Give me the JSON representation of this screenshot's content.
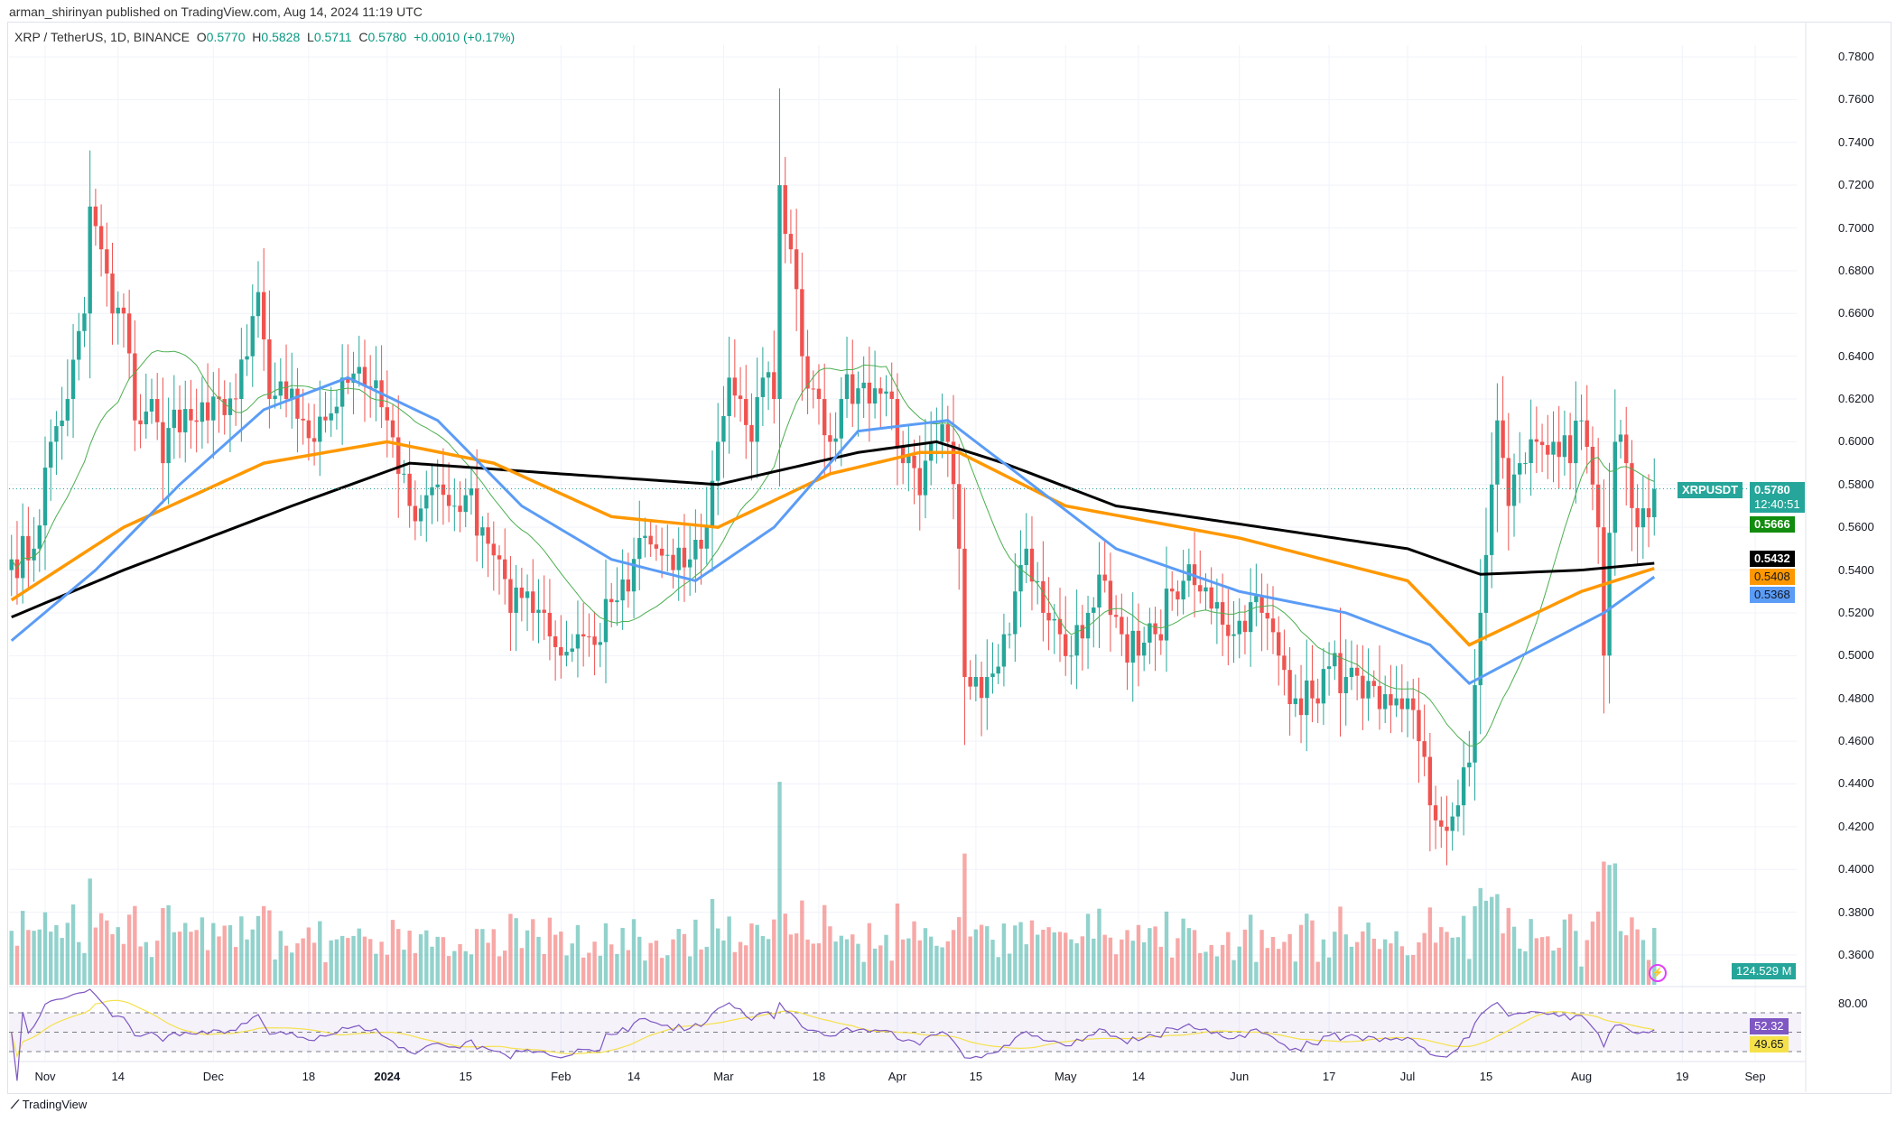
{
  "header": {
    "published": "arman_shirinyan published on TradingView.com, Aug 14, 2024 11:19 UTC",
    "symbol": "XRP / TetherUS, 1D, BINANCE",
    "o_label": "O",
    "o": "0.5770",
    "h_label": "H",
    "h": "0.5828",
    "l_label": "L",
    "l": "0.5711",
    "c_label": "C",
    "c": "0.5780",
    "change": "+0.0010 (+0.17%)"
  },
  "colors": {
    "up": "#26a69a",
    "down": "#ef5350",
    "ma20": "#4caf50",
    "ma50": "#5b9cf6",
    "ma100": "#ff9800",
    "ma200": "#000000",
    "rsi": "#7e57c2",
    "rsi_ma": "#f5e14a"
  },
  "price_axis": [
    "0.7800",
    "0.7600",
    "0.7400",
    "0.7200",
    "0.7000",
    "0.6800",
    "0.6600",
    "0.6400",
    "0.6200",
    "0.6000",
    "0.5800",
    "0.5600",
    "0.5400",
    "0.5200",
    "0.5000",
    "0.4800",
    "0.4600",
    "0.4400",
    "0.4200",
    "0.4000",
    "0.3800",
    "0.3600"
  ],
  "tags": {
    "symbol": "XRPUSDT",
    "last": "0.5780",
    "countdown": "12:40:51",
    "ma20": "0.5666",
    "ma200": "0.5432",
    "ma100": "0.5408",
    "ma50": "0.5368",
    "volume": "124.529 M",
    "rsi_level": "80.00",
    "rsi": "52.32",
    "rsi_ma": "49.65"
  },
  "time_axis": [
    "Nov",
    "14",
    "Dec",
    "18",
    "2024",
    "15",
    "Feb",
    "14",
    "Mar",
    "18",
    "Apr",
    "15",
    "May",
    "14",
    "Jun",
    "17",
    "Jul",
    "15",
    "Aug",
    "19",
    "Sep"
  ],
  "logo": "TradingView",
  "chart_data": {
    "type": "candlestick",
    "title": "XRP / TetherUS, 1D, BINANCE",
    "ylim": [
      0.35,
      0.79
    ],
    "start_date": "2023-10-26",
    "end_date": "2024-08-14",
    "close_anchors": [
      [
        "2023-10-26",
        0.545
      ],
      [
        "2023-10-30",
        0.55
      ],
      [
        "2023-11-02",
        0.6
      ],
      [
        "2023-11-05",
        0.62
      ],
      [
        "2023-11-08",
        0.66
      ],
      [
        "2023-11-09",
        0.71
      ],
      [
        "2023-11-11",
        0.69
      ],
      [
        "2023-11-13",
        0.66
      ],
      [
        "2023-11-15",
        0.66
      ],
      [
        "2023-11-17",
        0.61
      ],
      [
        "2023-11-20",
        0.62
      ],
      [
        "2023-11-22",
        0.59
      ],
      [
        "2023-11-24",
        0.615
      ],
      [
        "2023-11-27",
        0.61
      ],
      [
        "2023-11-30",
        0.61
      ],
      [
        "2023-12-02",
        0.62
      ],
      [
        "2023-12-05",
        0.62
      ],
      [
        "2023-12-07",
        0.64
      ],
      [
        "2023-12-09",
        0.67
      ],
      [
        "2023-12-11",
        0.62
      ],
      [
        "2023-12-14",
        0.62
      ],
      [
        "2023-12-17",
        0.61
      ],
      [
        "2023-12-19",
        0.6
      ],
      [
        "2023-12-21",
        0.61
      ],
      [
        "2023-12-24",
        0.63
      ],
      [
        "2023-12-27",
        0.635
      ],
      [
        "2023-12-29",
        0.625
      ],
      [
        "2024-01-01",
        0.61
      ],
      [
        "2024-01-03",
        0.585
      ],
      [
        "2024-01-05",
        0.57
      ],
      [
        "2024-01-08",
        0.575
      ],
      [
        "2024-01-10",
        0.58
      ],
      [
        "2024-01-12",
        0.57
      ],
      [
        "2024-01-15",
        0.575
      ],
      [
        "2024-01-18",
        0.56
      ],
      [
        "2024-01-21",
        0.545
      ],
      [
        "2024-01-23",
        0.52
      ],
      [
        "2024-01-26",
        0.53
      ],
      [
        "2024-01-29",
        0.52
      ],
      [
        "2024-02-01",
        0.5
      ],
      [
        "2024-02-04",
        0.51
      ],
      [
        "2024-02-07",
        0.505
      ],
      [
        "2024-02-10",
        0.525
      ],
      [
        "2024-02-13",
        0.53
      ],
      [
        "2024-02-15",
        0.555
      ],
      [
        "2024-02-18",
        0.55
      ],
      [
        "2024-02-21",
        0.54
      ],
      [
        "2024-02-24",
        0.545
      ],
      [
        "2024-02-27",
        0.56
      ],
      [
        "2024-02-29",
        0.6
      ],
      [
        "2024-03-02",
        0.63
      ],
      [
        "2024-03-04",
        0.62
      ],
      [
        "2024-03-06",
        0.6
      ],
      [
        "2024-03-08",
        0.63
      ],
      [
        "2024-03-10",
        0.62
      ],
      [
        "2024-03-11",
        0.72
      ],
      [
        "2024-03-13",
        0.69
      ],
      [
        "2024-03-15",
        0.64
      ],
      [
        "2024-03-18",
        0.62
      ],
      [
        "2024-03-20",
        0.6
      ],
      [
        "2024-03-22",
        0.62
      ],
      [
        "2024-03-25",
        0.625
      ],
      [
        "2024-03-28",
        0.625
      ],
      [
        "2024-03-31",
        0.62
      ],
      [
        "2024-04-02",
        0.59
      ],
      [
        "2024-04-05",
        0.575
      ],
      [
        "2024-04-08",
        0.6
      ],
      [
        "2024-04-10",
        0.6
      ],
      [
        "2024-04-12",
        0.55
      ],
      [
        "2024-04-13",
        0.49
      ],
      [
        "2024-04-15",
        0.49
      ],
      [
        "2024-04-17",
        0.49
      ],
      [
        "2024-04-20",
        0.51
      ],
      [
        "2024-04-22",
        0.53
      ],
      [
        "2024-04-24",
        0.55
      ],
      [
        "2024-04-27",
        0.52
      ],
      [
        "2024-04-30",
        0.51
      ],
      [
        "2024-05-02",
        0.5
      ],
      [
        "2024-05-05",
        0.52
      ],
      [
        "2024-05-08",
        0.535
      ],
      [
        "2024-05-11",
        0.51
      ],
      [
        "2024-05-14",
        0.5
      ],
      [
        "2024-05-17",
        0.51
      ],
      [
        "2024-05-20",
        0.53
      ],
      [
        "2024-05-22",
        0.535
      ],
      [
        "2024-05-25",
        0.53
      ],
      [
        "2024-05-28",
        0.525
      ],
      [
        "2024-05-31",
        0.51
      ],
      [
        "2024-06-03",
        0.525
      ],
      [
        "2024-06-05",
        0.52
      ],
      [
        "2024-06-08",
        0.5
      ],
      [
        "2024-06-11",
        0.48
      ],
      [
        "2024-06-14",
        0.48
      ],
      [
        "2024-06-17",
        0.495
      ],
      [
        "2024-06-20",
        0.49
      ],
      [
        "2024-06-23",
        0.48
      ],
      [
        "2024-06-26",
        0.475
      ],
      [
        "2024-06-29",
        0.48
      ],
      [
        "2024-07-01",
        0.48
      ],
      [
        "2024-07-03",
        0.46
      ],
      [
        "2024-07-05",
        0.43
      ],
      [
        "2024-07-07",
        0.42
      ],
      [
        "2024-07-10",
        0.43
      ],
      [
        "2024-07-12",
        0.45
      ],
      [
        "2024-07-14",
        0.52
      ],
      [
        "2024-07-16",
        0.58
      ],
      [
        "2024-07-17",
        0.61
      ],
      [
        "2024-07-19",
        0.57
      ],
      [
        "2024-07-21",
        0.59
      ],
      [
        "2024-07-24",
        0.6
      ],
      [
        "2024-07-27",
        0.6
      ],
      [
        "2024-07-30",
        0.59
      ],
      [
        "2024-08-01",
        0.61
      ],
      [
        "2024-08-03",
        0.58
      ],
      [
        "2024-08-04",
        0.56
      ],
      [
        "2024-08-05",
        0.5
      ],
      [
        "2024-08-07",
        0.6
      ],
      [
        "2024-08-09",
        0.59
      ],
      [
        "2024-08-11",
        0.56
      ],
      [
        "2024-08-14",
        0.578
      ]
    ],
    "ma50_anchors": [
      [
        "2023-10-26",
        0.507
      ],
      [
        "2023-11-10",
        0.54
      ],
      [
        "2023-11-25",
        0.58
      ],
      [
        "2023-12-10",
        0.615
      ],
      [
        "2023-12-25",
        0.63
      ],
      [
        "2024-01-10",
        0.61
      ],
      [
        "2024-01-25",
        0.57
      ],
      [
        "2024-02-10",
        0.545
      ],
      [
        "2024-02-25",
        0.535
      ],
      [
        "2024-03-10",
        0.56
      ],
      [
        "2024-03-25",
        0.605
      ],
      [
        "2024-04-10",
        0.61
      ],
      [
        "2024-04-25",
        0.58
      ],
      [
        "2024-05-10",
        0.55
      ],
      [
        "2024-06-01",
        0.53
      ],
      [
        "2024-06-20",
        0.52
      ],
      [
        "2024-07-05",
        0.505
      ],
      [
        "2024-07-12",
        0.487
      ],
      [
        "2024-07-25",
        0.505
      ],
      [
        "2024-08-05",
        0.52
      ],
      [
        "2024-08-14",
        0.5368
      ]
    ],
    "ma100_anchors": [
      [
        "2023-10-26",
        0.526
      ],
      [
        "2023-11-15",
        0.56
      ],
      [
        "2023-12-10",
        0.59
      ],
      [
        "2024-01-01",
        0.6
      ],
      [
        "2024-01-20",
        0.59
      ],
      [
        "2024-02-10",
        0.565
      ],
      [
        "2024-02-29",
        0.56
      ],
      [
        "2024-03-20",
        0.585
      ],
      [
        "2024-04-05",
        0.595
      ],
      [
        "2024-04-12",
        0.595
      ],
      [
        "2024-05-01",
        0.57
      ],
      [
        "2024-06-01",
        0.555
      ],
      [
        "2024-07-01",
        0.535
      ],
      [
        "2024-07-12",
        0.505
      ],
      [
        "2024-07-20",
        0.515
      ],
      [
        "2024-08-01",
        0.53
      ],
      [
        "2024-08-14",
        0.5408
      ]
    ],
    "ma200_anchors": [
      [
        "2023-10-26",
        0.518
      ],
      [
        "2023-11-15",
        0.54
      ],
      [
        "2023-12-15",
        0.57
      ],
      [
        "2024-01-05",
        0.59
      ],
      [
        "2024-02-01",
        0.585
      ],
      [
        "2024-02-29",
        0.58
      ],
      [
        "2024-03-25",
        0.595
      ],
      [
        "2024-04-08",
        0.6
      ],
      [
        "2024-04-20",
        0.59
      ],
      [
        "2024-05-10",
        0.57
      ],
      [
        "2024-06-05",
        0.56
      ],
      [
        "2024-07-01",
        0.55
      ],
      [
        "2024-07-14",
        0.538
      ],
      [
        "2024-08-01",
        0.54
      ],
      [
        "2024-08-14",
        0.5432
      ]
    ],
    "rsi_levels": [
      70,
      50,
      30
    ],
    "rsi_axis": "80.00"
  }
}
